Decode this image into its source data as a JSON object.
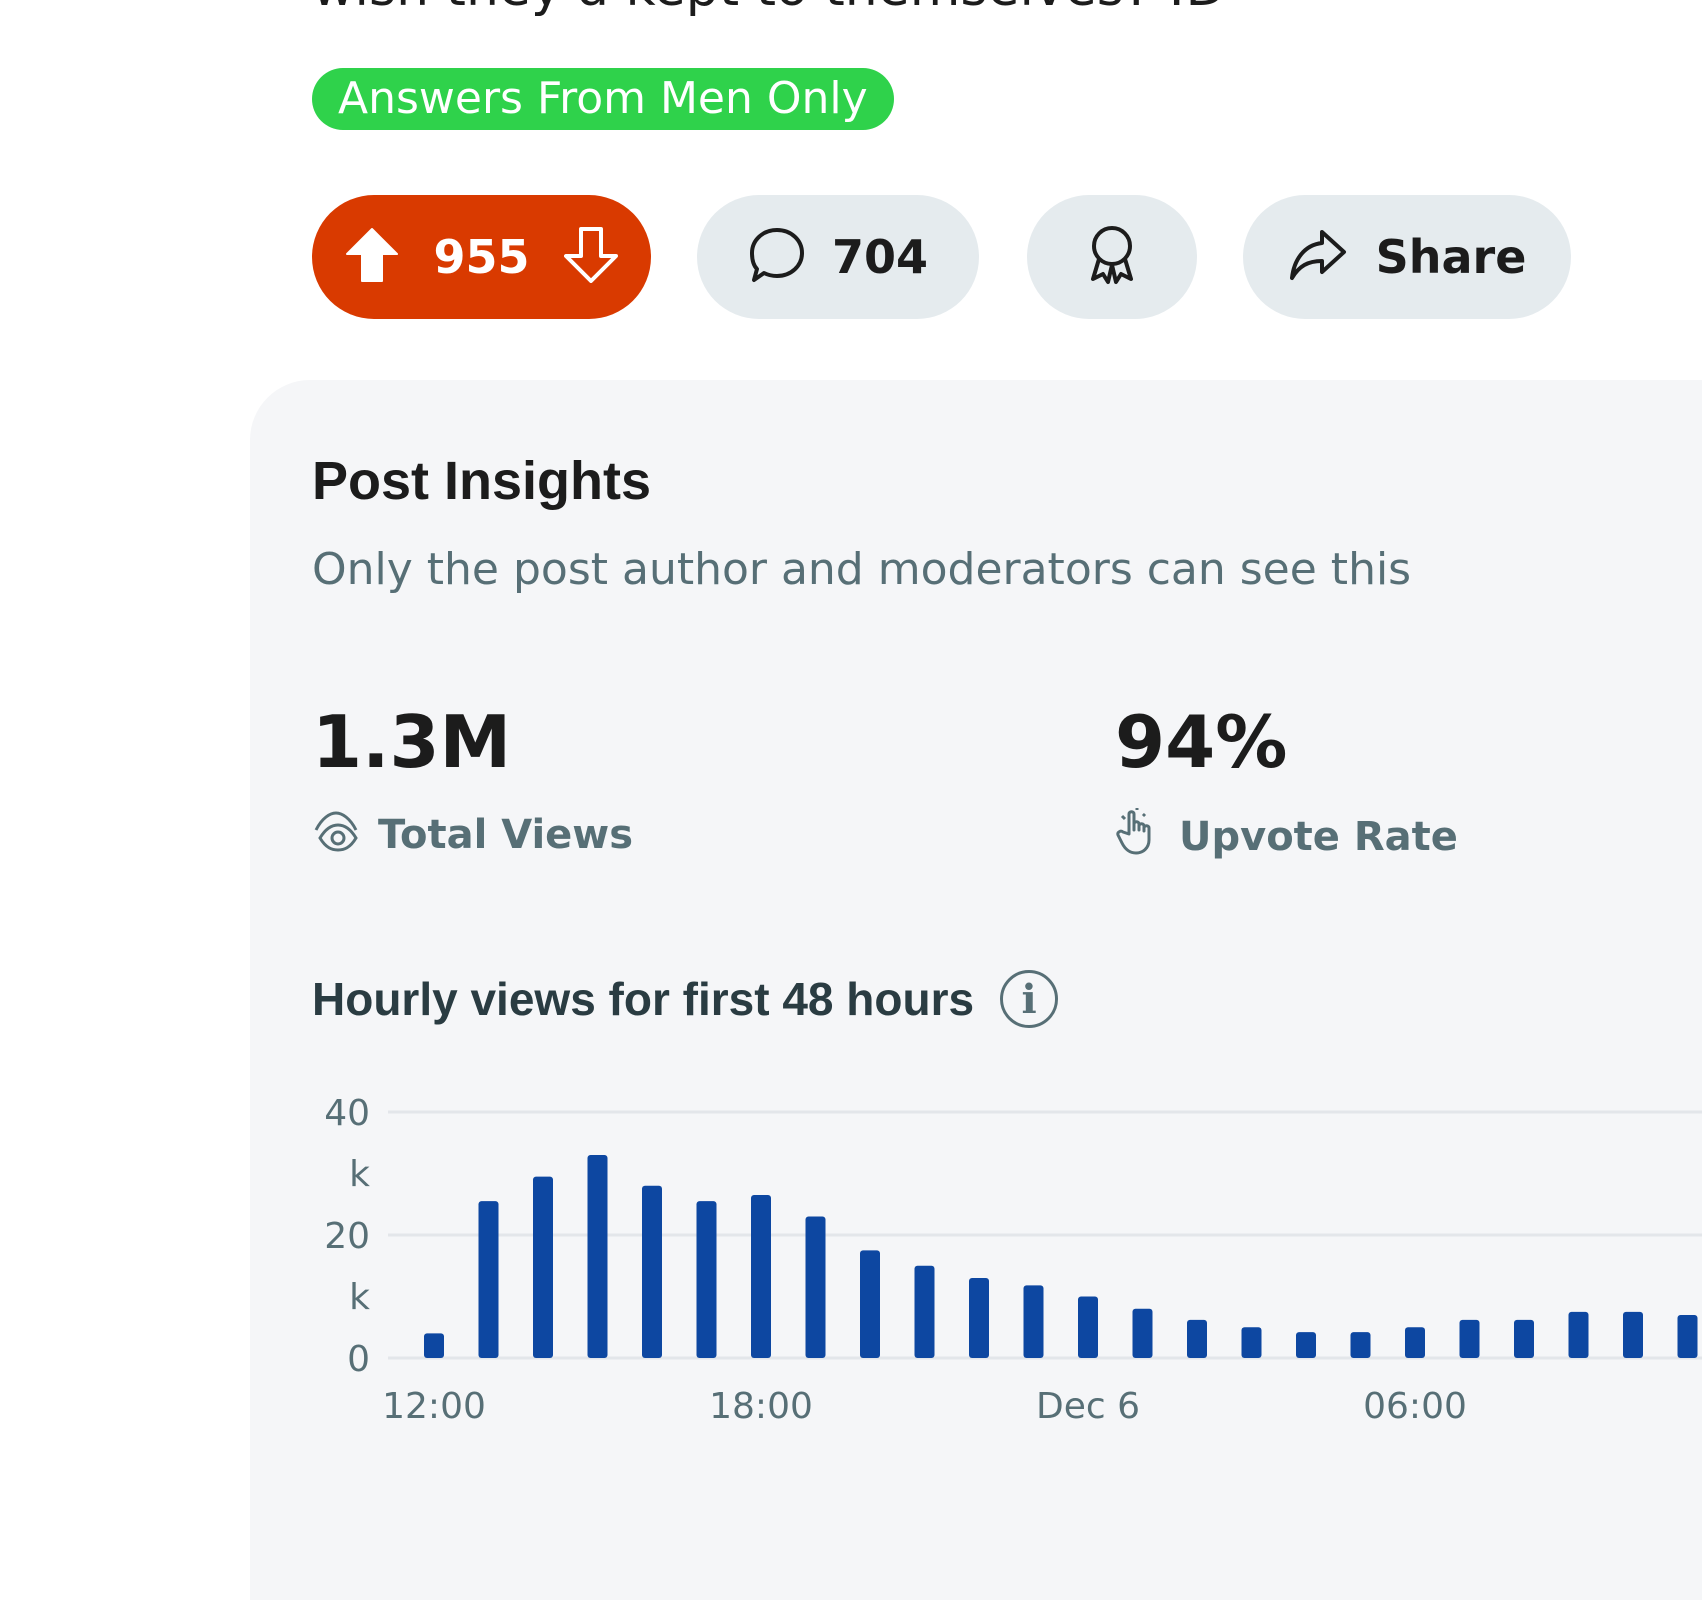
{
  "post": {
    "title_fragment": "wish they'd kept to themselves? :D",
    "flair": "Answers From Men Only"
  },
  "actions": {
    "vote_count": "955",
    "comment_count": "704",
    "share_label": "Share"
  },
  "insights": {
    "title": "Post Insights",
    "subtitle": "Only the post author and moderators can see this",
    "stats": [
      {
        "value": "1.3M",
        "label": "Total Views",
        "icon": "eye-icon"
      },
      {
        "value": "94%",
        "label": "Upvote Rate",
        "icon": "hand-pointer-icon"
      }
    ],
    "chart_title": "Hourly views for first 48 hours"
  },
  "colors": {
    "upvote": "#d93a00",
    "flair": "#2fd24b",
    "bars": "#0d47a1",
    "muted": "#576f76"
  },
  "chart_data": {
    "type": "bar",
    "title": "Hourly views for first 48 hours",
    "y_tick_labels": [
      [
        "0"
      ],
      [
        "20",
        "k"
      ],
      [
        "40",
        "k"
      ]
    ],
    "y_ticks": [
      0,
      20000,
      40000
    ],
    "ylim": [
      0,
      40000
    ],
    "x_tick_labels": [
      "12:00",
      "18:00",
      "Dec 6",
      "06:00"
    ],
    "x_tick_bar_index": [
      0,
      6,
      12,
      18
    ],
    "grid": true,
    "values": [
      4000,
      25500,
      29500,
      33000,
      28000,
      25500,
      26500,
      23000,
      17500,
      15000,
      13000,
      11800,
      10000,
      8000,
      6200,
      5000,
      4200,
      4200,
      5000,
      6200,
      6200,
      7500,
      7500,
      7000
    ]
  }
}
